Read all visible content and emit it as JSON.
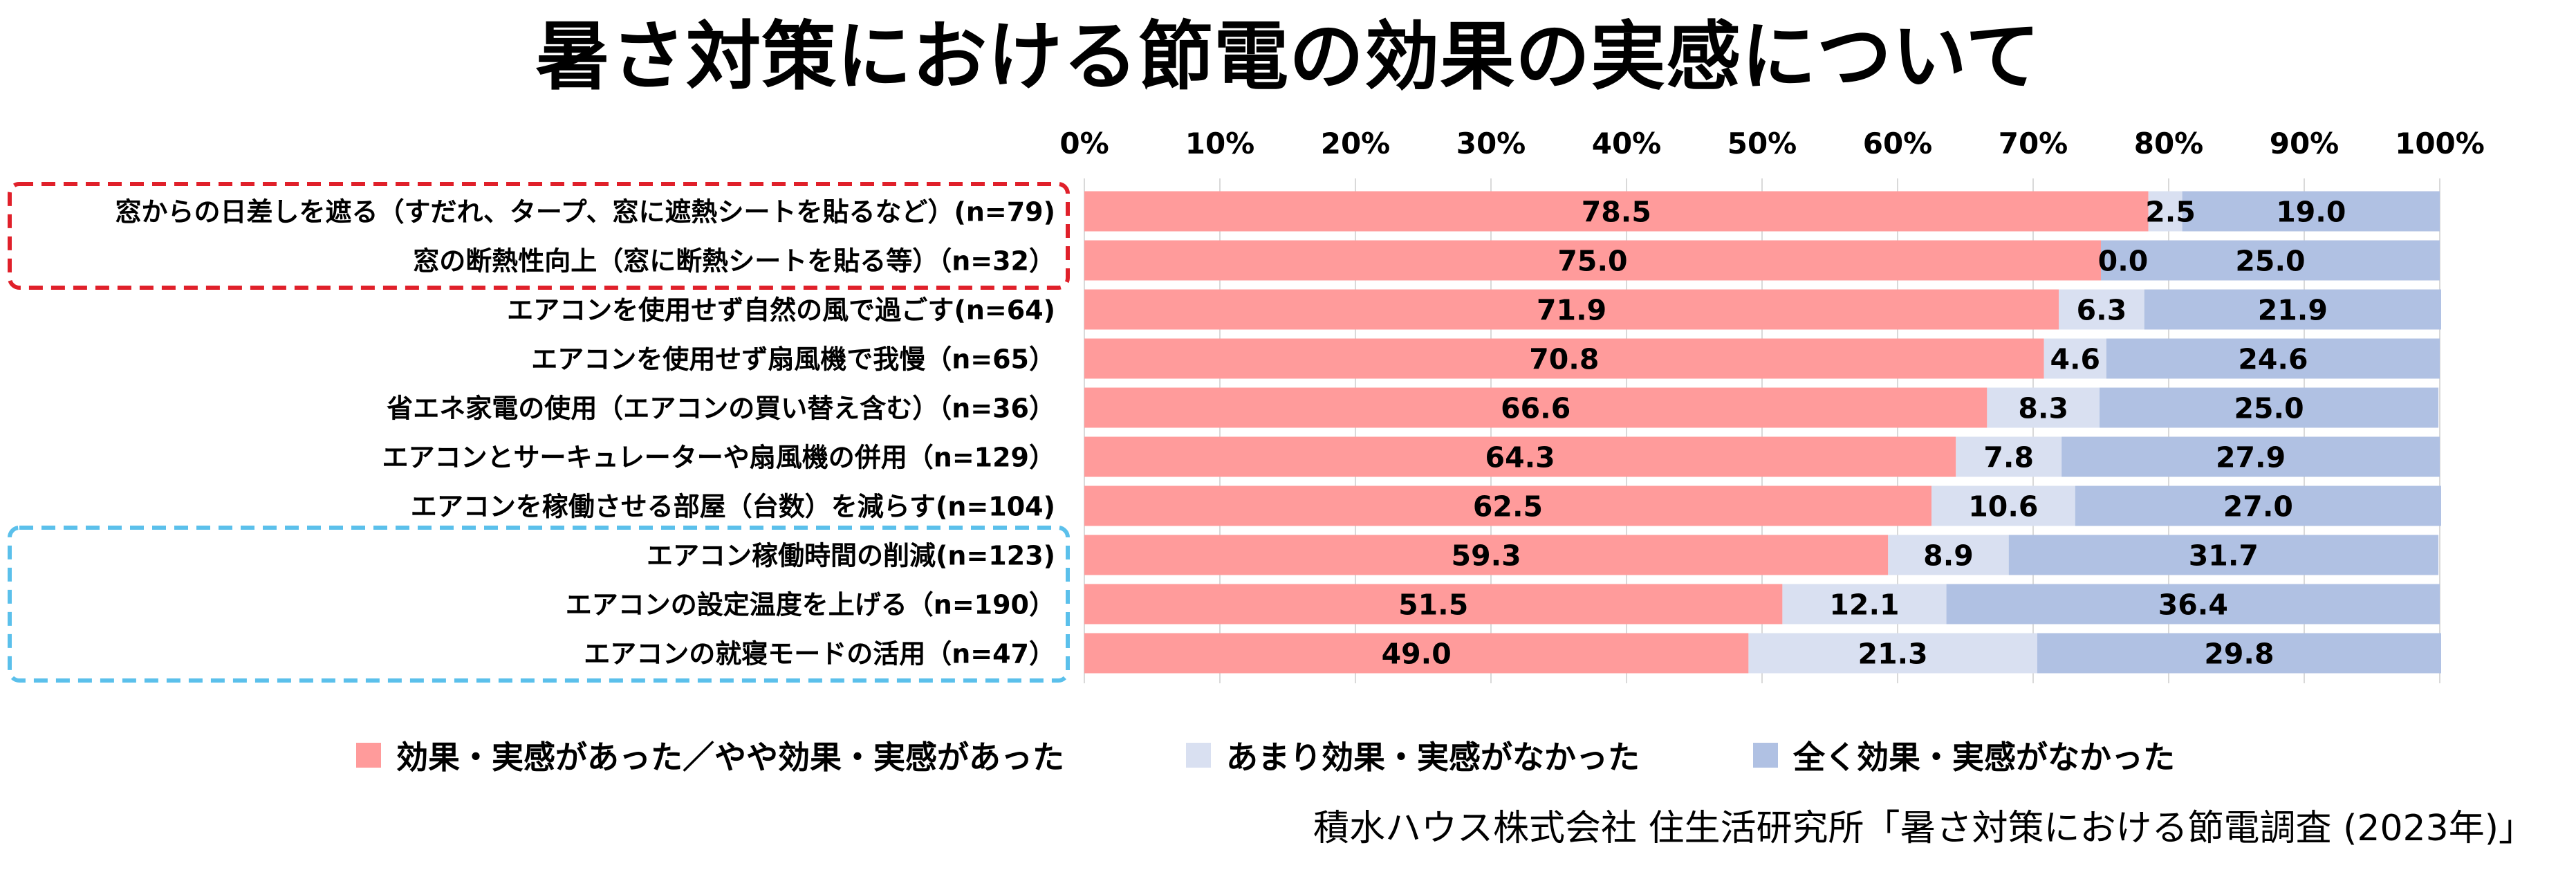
{
  "title": "暑さ対策における節電の効果の実感について",
  "source": "積水ハウス株式会社 住生活研究所「暑さ対策における節電調査 (2023年)」",
  "colors": {
    "effective": "#FF9B9B",
    "not_much": "#D9E0F1",
    "not_at_all": "#B0C1E3",
    "red_box": "#E0202A",
    "blue_box": "#5BC0EB",
    "grid": "#D9D9D9"
  },
  "chart_data": {
    "type": "bar",
    "orientation": "horizontal",
    "stacked": "100%",
    "title": "暑さ対策における節電の効果の実感について",
    "xlim": [
      0,
      100
    ],
    "xticks": [
      "0%",
      "10%",
      "20%",
      "30%",
      "40%",
      "50%",
      "60%",
      "70%",
      "80%",
      "90%",
      "100%"
    ],
    "legend_position": "bottom",
    "grid": "vertical",
    "categories": [
      "窓からの日差しを遮る（すだれ、タープ、窓に遮熱シートを貼るなど）(n=79)",
      "窓の断熱性向上（窓に断熱シートを貼る等）（n=32）",
      "エアコンを使用せず自然の風で過ごす(n=64)",
      "エアコンを使用せず扇風機で我慢（n=65）",
      "省エネ家電の使用（エアコンの買い替え含む）（n=36）",
      "エアコンとサーキュレーターや扇風機の併用（n=129）",
      "エアコンを稼働させる部屋（台数）を減らす(n=104)",
      "エアコン稼働時間の削減(n=123)",
      "エアコンの設定温度を上げる（n=190）",
      "エアコンの就寝モードの活用（n=47）"
    ],
    "series": [
      {
        "name": "効果・実感があった／やや効果・実感があった",
        "values": [
          78.5,
          75.0,
          71.9,
          70.8,
          66.6,
          64.3,
          62.5,
          59.3,
          51.5,
          49.0
        ]
      },
      {
        "name": "あまり効果・実感がなかった",
        "values": [
          2.5,
          0.0,
          6.3,
          4.6,
          8.3,
          7.8,
          10.6,
          8.9,
          12.1,
          21.3
        ]
      },
      {
        "name": "全く効果・実感がなかった",
        "values": [
          19.0,
          25.0,
          21.9,
          24.6,
          25.0,
          27.9,
          27.0,
          31.7,
          36.4,
          29.8
        ]
      }
    ],
    "data_labels": [
      [
        "78.5",
        "75.0",
        "71.9",
        "70.8",
        "66.6",
        "64.3",
        "62.5",
        "59.3",
        "51.5",
        "49.0"
      ],
      [
        "2.5",
        "0.0",
        "6.3",
        "4.6",
        "8.3",
        "7.8",
        "10.6",
        "8.9",
        "12.1",
        "21.3"
      ],
      [
        "19.0",
        "25.0",
        "21.9",
        "24.6",
        "25.0",
        "27.9",
        "27.0",
        "31.7",
        "36.4",
        "29.8"
      ]
    ],
    "highlight_groups": [
      {
        "color": "red",
        "style": "dashed",
        "categories": [
          0,
          1
        ]
      },
      {
        "color": "blue",
        "style": "dashed",
        "categories": [
          7,
          8,
          9
        ]
      }
    ]
  }
}
